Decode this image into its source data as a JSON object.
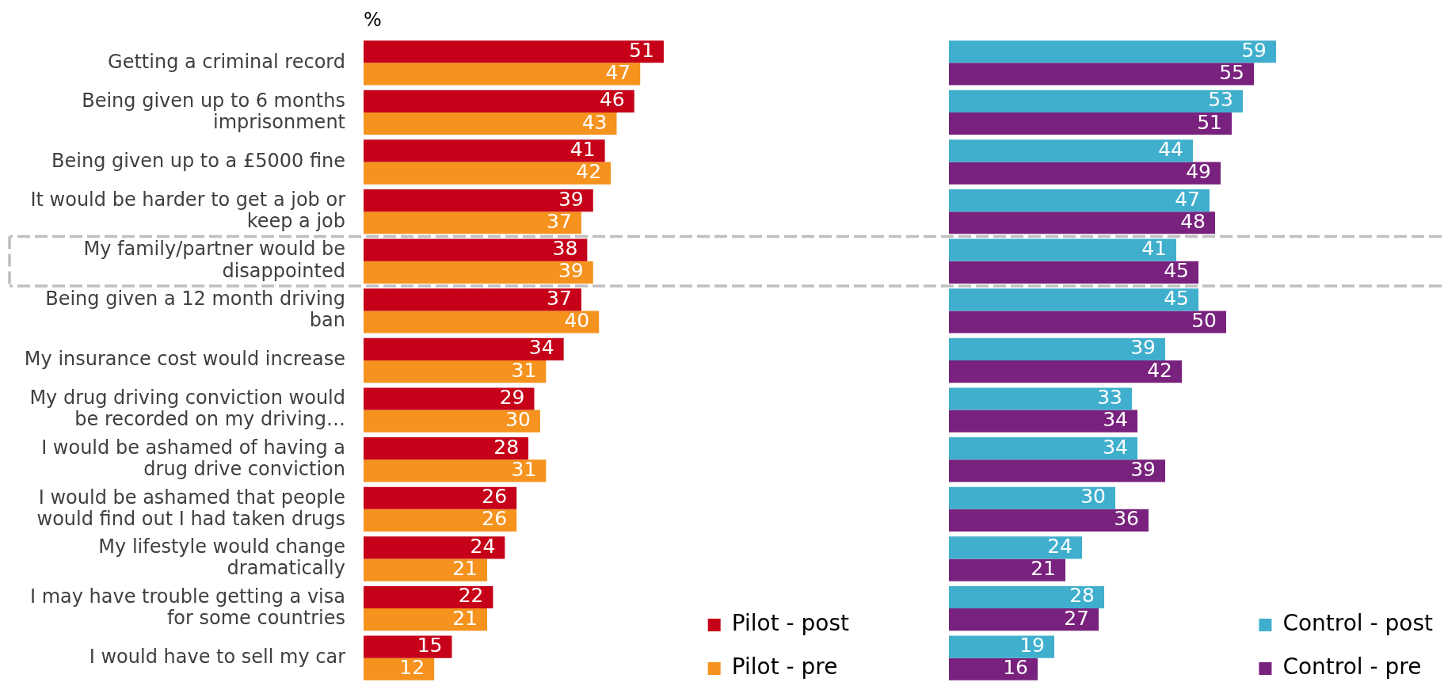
{
  "chart_data": [
    {
      "type": "bar",
      "orientation": "horizontal",
      "title": "%",
      "categories": [
        "Getting a criminal record",
        "Being given up to 6 months imprisonment",
        "Being given up to a £5000 fine",
        "It would be harder to get a job or keep a job",
        "My family/partner would be disappointed",
        "Being given a 12 month driving ban",
        "My insurance cost would increase",
        "My drug driving conviction would be recorded on my driving…",
        "I would be ashamed of having a drug drive conviction",
        "I would be ashamed that people would find out I had taken drugs",
        "My lifestyle would change dramatically",
        "I may have trouble getting a visa for some countries",
        "I would have to sell my car"
      ],
      "series": [
        {
          "name": "Pilot - post",
          "color": "#c50018",
          "values": [
            51,
            46,
            41,
            39,
            38,
            37,
            34,
            29,
            28,
            26,
            24,
            22,
            15
          ]
        },
        {
          "name": "Pilot - pre",
          "color": "#f6921e",
          "values": [
            47,
            43,
            42,
            37,
            39,
            40,
            31,
            30,
            31,
            26,
            21,
            21,
            12
          ]
        }
      ],
      "data_labels": true,
      "legend": "bottom right",
      "tick_labels": "y"
    },
    {
      "type": "bar",
      "orientation": "horizontal",
      "categories": [
        null,
        null,
        null,
        null,
        null,
        null,
        null,
        null,
        null,
        null,
        null,
        null,
        null
      ],
      "series": [
        {
          "name": "Control - post",
          "color": "#40afcd",
          "values": [
            59,
            53,
            44,
            47,
            41,
            45,
            39,
            33,
            34,
            30,
            24,
            28,
            19
          ]
        },
        {
          "name": "Control - pre",
          "color": "#78217d",
          "values": [
            55,
            51,
            49,
            48,
            45,
            50,
            42,
            34,
            39,
            36,
            21,
            27,
            16
          ]
        }
      ],
      "data_labels": true,
      "legend": "bottom right",
      "tick_labels": false
    }
  ]
}
